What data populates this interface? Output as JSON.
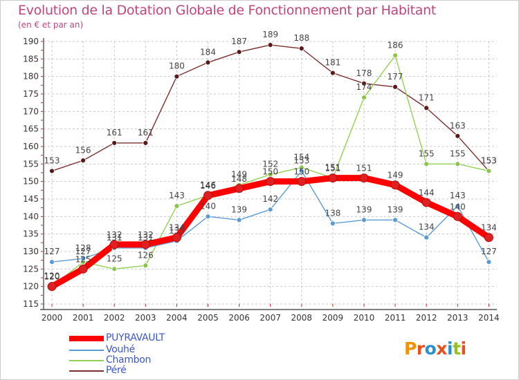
{
  "title": "Evolution de la Dotation Globale de Fonctionnement par Habitant",
  "subtitle": "(en € et par an)",
  "chart_data": {
    "type": "line",
    "title": "Evolution de la Dotation Globale de Fonctionnement par Habitant",
    "subtitle": "(en € et par an)",
    "xlabel": "",
    "ylabel": "",
    "ylim": [
      115,
      190
    ],
    "yticks": [
      115,
      120,
      125,
      130,
      135,
      140,
      145,
      150,
      155,
      160,
      165,
      170,
      175,
      180,
      185,
      190
    ],
    "x": [
      "2000",
      "2001",
      "2002",
      "2003",
      "2004",
      "2005",
      "2006",
      "2007",
      "2008",
      "2009",
      "2010",
      "2011",
      "2012",
      "2013",
      "2014"
    ],
    "grid": true,
    "series": [
      {
        "name": "PUYRAVAULT",
        "color": "#ff0000",
        "values": [
          120,
          125,
          132,
          132,
          134,
          146,
          148,
          150,
          150,
          151,
          151,
          149,
          144,
          140,
          134
        ],
        "labels": [
          "120",
          "125",
          "132",
          "132",
          "134",
          "146",
          "148",
          "150",
          "150",
          "151",
          "151",
          "149",
          "144",
          "140",
          "134"
        ]
      },
      {
        "name": "Vouhé",
        "color": "#5b9bd5",
        "values": [
          127,
          128,
          131,
          131,
          133,
          140,
          139,
          142,
          153,
          138,
          139,
          139,
          134,
          143,
          127
        ],
        "labels": [
          "127",
          "128",
          "131",
          "131",
          "133",
          "140",
          "139",
          "142",
          "153",
          "138",
          "139",
          "139",
          "134",
          "143",
          "127"
        ]
      },
      {
        "name": "Chambon",
        "color": "#92d050",
        "values": [
          120,
          127,
          125,
          126,
          143,
          146,
          149,
          152,
          154,
          151,
          174,
          186,
          155,
          155,
          153
        ],
        "labels": [
          "120",
          "127",
          "125",
          "126",
          "143",
          "146",
          "149",
          "152",
          "154",
          "151",
          "174",
          "186",
          "155",
          "155",
          "153"
        ]
      },
      {
        "name": "Péré",
        "color": "#7b2d2d",
        "values": [
          153,
          156,
          161,
          161,
          180,
          184,
          187,
          189,
          188,
          181,
          178,
          177,
          171,
          163,
          153
        ],
        "labels": [
          "153",
          "156",
          "161",
          "161",
          "180",
          "184",
          "187",
          "189",
          "188",
          "181",
          "178",
          "177",
          "171",
          "163",
          "153"
        ]
      }
    ],
    "legend_position": "bottom-left"
  },
  "legend": {
    "items": [
      {
        "label": "PUYRAVAULT",
        "color": "#ff0000"
      },
      {
        "label": "Vouhé",
        "color": "#5b9bd5"
      },
      {
        "label": "Chambon",
        "color": "#92d050"
      },
      {
        "label": "Péré",
        "color": "#7b2d2d"
      }
    ]
  },
  "logo": {
    "text": "Proxiti",
    "letters": [
      {
        "ch": "P",
        "color": "#f39200"
      },
      {
        "ch": "r",
        "color": "#e94e1b"
      },
      {
        "ch": "o",
        "color": "#2a8fd0"
      },
      {
        "ch": "x",
        "color": "#e94e1b"
      },
      {
        "ch": "i",
        "color": "#2a8fd0"
      },
      {
        "ch": "t",
        "color": "#95c11f"
      },
      {
        "ch": "i",
        "color": "#e94e1b"
      }
    ]
  }
}
